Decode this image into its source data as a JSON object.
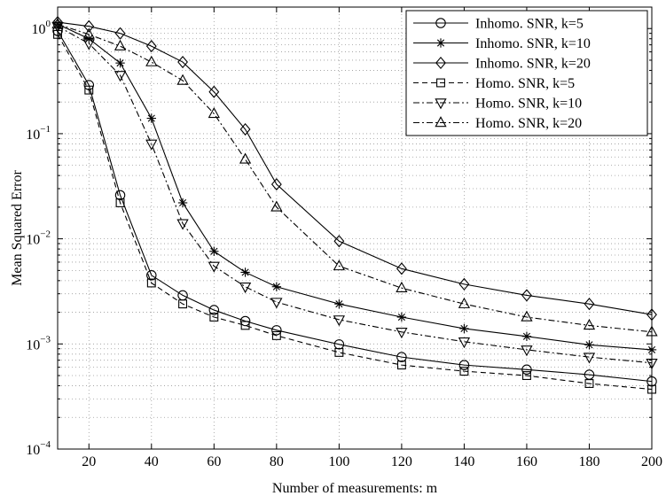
{
  "chart_data": {
    "type": "line",
    "xlabel": "Number of measurements: m",
    "ylabel": "Mean Squared Error",
    "xlim": [
      10,
      200
    ],
    "ylim": [
      0.0001,
      1.6
    ],
    "yscale": "log",
    "grid": true,
    "legend_position": "top-right",
    "x_ticks": [
      20,
      40,
      60,
      80,
      100,
      120,
      140,
      160,
      180,
      200
    ],
    "x_tick_labels": [
      "20",
      "40",
      "60",
      "80",
      "100",
      "120",
      "140",
      "160",
      "180",
      "200"
    ],
    "y_ticks": [
      0.0001,
      0.001,
      0.01,
      0.1,
      1
    ],
    "y_tick_labels": [
      {
        "base": "10",
        "exp": "−4"
      },
      {
        "base": "10",
        "exp": "−3"
      },
      {
        "base": "10",
        "exp": "−2"
      },
      {
        "base": "10",
        "exp": "−1"
      },
      {
        "base": "10",
        "exp": "0"
      }
    ],
    "x": [
      10,
      20,
      30,
      40,
      50,
      60,
      70,
      80,
      100,
      120,
      140,
      160,
      180,
      200
    ],
    "series": [
      {
        "name": "Inhomo. SNR, k=5",
        "marker": "circle",
        "dash": "solid",
        "values": [
          0.95,
          0.29,
          0.026,
          0.0045,
          0.0029,
          0.0021,
          0.00165,
          0.00135,
          0.00099,
          0.00075,
          0.00063,
          0.00057,
          0.00051,
          0.00044
        ]
      },
      {
        "name": "Inhomo. SNR, k=10",
        "marker": "star",
        "dash": "solid",
        "values": [
          1.1,
          0.8,
          0.47,
          0.14,
          0.022,
          0.0076,
          0.0048,
          0.0035,
          0.0024,
          0.0018,
          0.0014,
          0.00118,
          0.00098,
          0.00088
        ]
      },
      {
        "name": "Inhomo. SNR, k=20",
        "marker": "diamond",
        "dash": "solid",
        "values": [
          1.15,
          1.05,
          0.9,
          0.68,
          0.48,
          0.25,
          0.11,
          0.033,
          0.0095,
          0.0052,
          0.0037,
          0.0029,
          0.0024,
          0.0019
        ]
      },
      {
        "name": "Homo. SNR, k=5",
        "marker": "square",
        "dash": "dashed",
        "values": [
          0.88,
          0.26,
          0.022,
          0.0038,
          0.0024,
          0.0018,
          0.0015,
          0.0012,
          0.00083,
          0.00063,
          0.00055,
          0.0005,
          0.00042,
          0.00037
        ]
      },
      {
        "name": "Homo. SNR, k=10",
        "marker": "triangle-down",
        "dash": "dashdot",
        "values": [
          1.05,
          0.72,
          0.36,
          0.08,
          0.014,
          0.0055,
          0.0035,
          0.0025,
          0.0017,
          0.0013,
          0.00105,
          0.00088,
          0.00075,
          0.00066
        ]
      },
      {
        "name": "Homo. SNR, k=20",
        "marker": "triangle-up",
        "dash": "dashdot",
        "values": [
          1.1,
          0.88,
          0.68,
          0.48,
          0.32,
          0.155,
          0.057,
          0.02,
          0.0055,
          0.0034,
          0.0024,
          0.0018,
          0.0015,
          0.0013
        ]
      }
    ],
    "colors": {
      "line": "#000000",
      "grid": "#9a9a9a",
      "background": "#ffffff"
    }
  }
}
